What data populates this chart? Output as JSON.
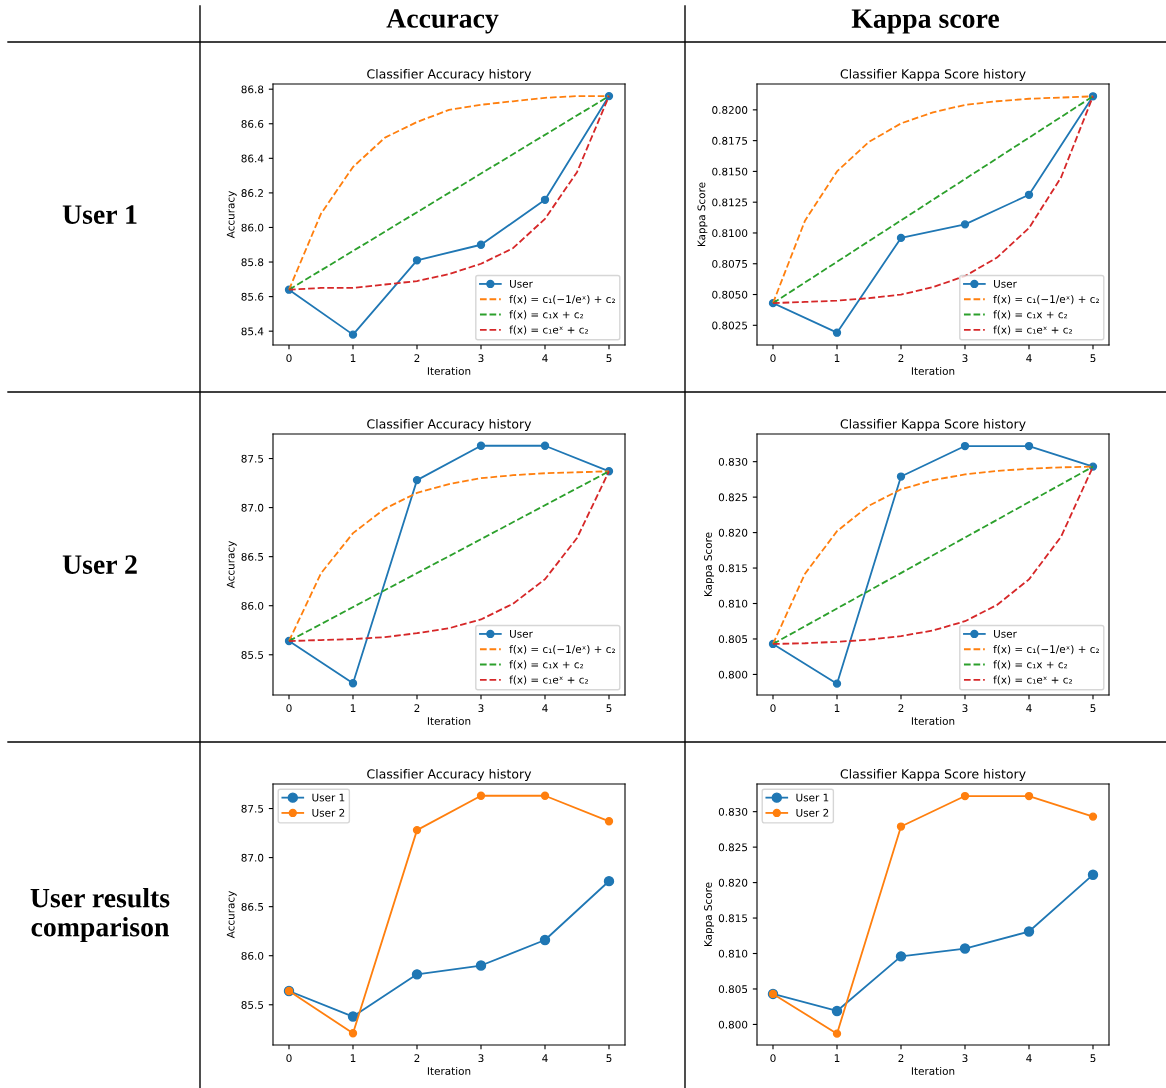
{
  "chart_data": [
    {
      "type": "other",
      "categories": [
        "Accuracy",
        "Kappa score"
      ],
      "y_categories": [
        "User 1",
        "User 2",
        "User results comparison"
      ]
    },
    {
      "type": "line",
      "title": "Classifier Accuracy history",
      "xlabel": "Iteration",
      "ylabel": "Accuracy",
      "xlim": [
        -0.25,
        5.25
      ],
      "xticks": [
        0,
        1,
        2,
        3,
        4,
        5
      ],
      "ylim": [
        85.32,
        86.83
      ],
      "yticks": [
        85.4,
        85.6,
        85.8,
        {
          "value": 86,
          "label": "86.0"
        },
        86.2,
        86.4,
        86.6,
        86.8
      ],
      "grid": false,
      "legend": "bottom right",
      "series": [
        {
          "name": "User",
          "color": "#1f77b4",
          "marker": "circle",
          "line_style": "solid",
          "x": [
            0,
            1,
            2,
            3,
            4,
            5
          ],
          "values": [
            85.64,
            85.38,
            85.81,
            85.9,
            86.16,
            86.76
          ]
        },
        {
          "name": "f(x) = c₁(−1/eˣ) + c₂",
          "color": "#ff7f0e",
          "marker": "none",
          "line_style": "dashed",
          "x": [
            0,
            0.5,
            1,
            1.5,
            2,
            2.5,
            3,
            3.5,
            4,
            4.5,
            5
          ],
          "values": [
            85.64,
            86.08,
            86.35,
            86.52,
            86.61,
            86.68,
            86.71,
            86.73,
            86.75,
            86.76,
            86.76
          ]
        },
        {
          "name": "f(x) = c₁x + c₂",
          "color": "#2ca02c",
          "marker": "none",
          "line_style": "dashed",
          "x": [
            0,
            5
          ],
          "values": [
            85.64,
            86.76
          ]
        },
        {
          "name": "f(x) = c₁eˣ + c₂",
          "color": "#d62728",
          "marker": "none",
          "line_style": "dashed",
          "x": [
            0,
            0.5,
            1,
            1.5,
            2,
            2.5,
            3,
            3.5,
            4,
            4.5,
            5
          ],
          "values": [
            85.64,
            85.65,
            85.65,
            85.67,
            85.69,
            85.73,
            85.79,
            85.88,
            86.05,
            86.32,
            86.76
          ]
        }
      ]
    },
    {
      "type": "line",
      "title": "Classifier Kappa Score history",
      "xlabel": "Iteration",
      "ylabel": "Kappa Score",
      "xlim": [
        -0.25,
        5.25
      ],
      "xticks": [
        0,
        1,
        2,
        3,
        4,
        5
      ],
      "ylim": [
        0.8009,
        0.8221
      ],
      "yticks": [
        {
          "value": 0.8025,
          "label": "0.8025"
        },
        {
          "value": 0.805,
          "label": "0.8050"
        },
        {
          "value": 0.8075,
          "label": "0.8075"
        },
        {
          "value": 0.81,
          "label": "0.8100"
        },
        {
          "value": 0.8125,
          "label": "0.8125"
        },
        {
          "value": 0.815,
          "label": "0.8150"
        },
        {
          "value": 0.8175,
          "label": "0.8175"
        },
        {
          "value": 0.82,
          "label": "0.8200"
        }
      ],
      "grid": false,
      "legend": "bottom right",
      "series": [
        {
          "name": "User",
          "color": "#1f77b4",
          "marker": "circle",
          "line_style": "solid",
          "x": [
            0,
            1,
            2,
            3,
            4,
            5
          ],
          "values": [
            0.8043,
            0.8019,
            0.8096,
            0.8107,
            0.8131,
            0.8211
          ]
        },
        {
          "name": "f(x) = c₁(−1/eˣ) + c₂",
          "color": "#ff7f0e",
          "marker": "none",
          "line_style": "dashed",
          "x": [
            0,
            0.5,
            1,
            1.5,
            2,
            2.5,
            3,
            3.5,
            4,
            4.5,
            5
          ],
          "values": [
            0.8043,
            0.811,
            0.815,
            0.8174,
            0.8189,
            0.8198,
            0.8204,
            0.8207,
            0.8209,
            0.821,
            0.8211
          ]
        },
        {
          "name": "f(x) = c₁x + c₂",
          "color": "#2ca02c",
          "marker": "none",
          "line_style": "dashed",
          "x": [
            0,
            5
          ],
          "values": [
            0.8043,
            0.8211
          ]
        },
        {
          "name": "f(x) = c₁eˣ + c₂",
          "color": "#d62728",
          "marker": "none",
          "line_style": "dashed",
          "x": [
            0,
            0.5,
            1,
            1.5,
            2,
            2.5,
            3,
            3.5,
            4,
            4.5,
            5
          ],
          "values": [
            0.8043,
            0.8044,
            0.8045,
            0.8047,
            0.805,
            0.8056,
            0.8065,
            0.808,
            0.8104,
            0.8145,
            0.8211
          ]
        }
      ]
    },
    {
      "type": "line",
      "title": "Classifier Accuracy history",
      "xlabel": "Iteration",
      "ylabel": "Accuracy",
      "xlim": [
        -0.25,
        5.25
      ],
      "xticks": [
        0,
        1,
        2,
        3,
        4,
        5
      ],
      "ylim": [
        85.09,
        87.75
      ],
      "yticks": [
        {
          "value": 85.5,
          "label": "85.5"
        },
        {
          "value": 86,
          "label": "86.0"
        },
        {
          "value": 86.5,
          "label": "86.5"
        },
        {
          "value": 87,
          "label": "87.0"
        },
        {
          "value": 87.5,
          "label": "87.5"
        }
      ],
      "grid": false,
      "legend": "bottom right",
      "series": [
        {
          "name": "User",
          "color": "#1f77b4",
          "marker": "circle",
          "line_style": "solid",
          "x": [
            0,
            1,
            2,
            3,
            4,
            5
          ],
          "values": [
            85.64,
            85.21,
            87.28,
            87.63,
            87.63,
            87.37
          ]
        },
        {
          "name": "f(x) = c₁(−1/eˣ) + c₂",
          "color": "#ff7f0e",
          "marker": "none",
          "line_style": "dashed",
          "x": [
            0,
            0.5,
            1,
            1.5,
            2,
            2.5,
            3,
            3.5,
            4,
            4.5,
            5
          ],
          "values": [
            85.64,
            86.33,
            86.74,
            86.99,
            87.15,
            87.24,
            87.3,
            87.33,
            87.35,
            87.36,
            87.37
          ]
        },
        {
          "name": "f(x) = c₁x + c₂",
          "color": "#2ca02c",
          "marker": "none",
          "line_style": "dashed",
          "x": [
            0,
            5
          ],
          "values": [
            85.64,
            87.37
          ]
        },
        {
          "name": "f(x) = c₁eˣ + c₂",
          "color": "#d62728",
          "marker": "none",
          "line_style": "dashed",
          "x": [
            0,
            0.5,
            1,
            1.5,
            2,
            2.5,
            3,
            3.5,
            4,
            4.5,
            5
          ],
          "values": [
            85.64,
            85.65,
            85.66,
            85.68,
            85.72,
            85.77,
            85.86,
            86.02,
            86.27,
            86.69,
            87.37
          ]
        }
      ]
    },
    {
      "type": "line",
      "title": "Classifier Kappa Score history",
      "xlabel": "Iteration",
      "ylabel": "Kappa Score",
      "xlim": [
        -0.25,
        5.25
      ],
      "xticks": [
        0,
        1,
        2,
        3,
        4,
        5
      ],
      "ylim": [
        0.7971,
        0.8339
      ],
      "yticks": [
        {
          "value": 0.8,
          "label": "0.800"
        },
        {
          "value": 0.805,
          "label": "0.805"
        },
        {
          "value": 0.81,
          "label": "0.810"
        },
        {
          "value": 0.815,
          "label": "0.815"
        },
        {
          "value": 0.82,
          "label": "0.820"
        },
        {
          "value": 0.825,
          "label": "0.825"
        },
        {
          "value": 0.83,
          "label": "0.830"
        }
      ],
      "grid": false,
      "legend": "bottom right",
      "series": [
        {
          "name": "User",
          "color": "#1f77b4",
          "marker": "circle",
          "line_style": "solid",
          "x": [
            0,
            1,
            2,
            3,
            4,
            5
          ],
          "values": [
            0.8043,
            0.7987,
            0.8279,
            0.8322,
            0.8322,
            0.8293
          ]
        },
        {
          "name": "f(x) = c₁(−1/eˣ) + c₂",
          "color": "#ff7f0e",
          "marker": "none",
          "line_style": "dashed",
          "x": [
            0,
            0.5,
            1,
            1.5,
            2,
            2.5,
            3,
            3.5,
            4,
            4.5,
            5
          ],
          "values": [
            0.8043,
            0.8142,
            0.8202,
            0.8238,
            0.8261,
            0.8274,
            0.8282,
            0.8287,
            0.829,
            0.8292,
            0.8293
          ]
        },
        {
          "name": "f(x) = c₁x + c₂",
          "color": "#2ca02c",
          "marker": "none",
          "line_style": "dashed",
          "x": [
            0,
            5
          ],
          "values": [
            0.8043,
            0.8293
          ]
        },
        {
          "name": "f(x) = c₁eˣ + c₂",
          "color": "#d62728",
          "marker": "none",
          "line_style": "dashed",
          "x": [
            0,
            0.5,
            1,
            1.5,
            2,
            2.5,
            3,
            3.5,
            4,
            4.5,
            5
          ],
          "values": [
            0.8043,
            0.8044,
            0.8046,
            0.8049,
            0.8054,
            0.8062,
            0.8075,
            0.8098,
            0.8134,
            0.8194,
            0.8293
          ]
        }
      ]
    },
    {
      "type": "line",
      "title": "Classifier Accuracy history",
      "xlabel": "Iteration",
      "ylabel": "Accuracy",
      "xlim": [
        -0.25,
        5.25
      ],
      "xticks": [
        0,
        1,
        2,
        3,
        4,
        5
      ],
      "ylim": [
        85.09,
        87.75
      ],
      "yticks": [
        {
          "value": 85.5,
          "label": "85.5"
        },
        {
          "value": 86,
          "label": "86.0"
        },
        {
          "value": 86.5,
          "label": "86.5"
        },
        {
          "value": 87,
          "label": "87.0"
        },
        {
          "value": 87.5,
          "label": "87.5"
        }
      ],
      "grid": false,
      "legend": "top left",
      "series": [
        {
          "name": "User 1",
          "color": "#1f77b4",
          "marker": "circle",
          "line_style": "solid",
          "x": [
            0,
            1,
            2,
            3,
            4,
            5
          ],
          "values": [
            85.64,
            85.38,
            85.81,
            85.9,
            86.16,
            86.76
          ]
        },
        {
          "name": "User 2",
          "color": "#ff7f0e",
          "marker": "circle",
          "line_style": "solid",
          "x": [
            0,
            1,
            2,
            3,
            4,
            5
          ],
          "values": [
            85.64,
            85.21,
            87.28,
            87.63,
            87.63,
            87.37
          ]
        }
      ]
    },
    {
      "type": "line",
      "title": "Classifier Kappa Score history",
      "xlabel": "Iteration",
      "ylabel": "Kappa Score",
      "xlim": [
        -0.25,
        5.25
      ],
      "xticks": [
        0,
        1,
        2,
        3,
        4,
        5
      ],
      "ylim": [
        0.7971,
        0.8339
      ],
      "yticks": [
        {
          "value": 0.8,
          "label": "0.800"
        },
        {
          "value": 0.805,
          "label": "0.805"
        },
        {
          "value": 0.81,
          "label": "0.810"
        },
        {
          "value": 0.815,
          "label": "0.815"
        },
        {
          "value": 0.82,
          "label": "0.820"
        },
        {
          "value": 0.825,
          "label": "0.825"
        },
        {
          "value": 0.83,
          "label": "0.830"
        }
      ],
      "grid": false,
      "legend": "top left",
      "series": [
        {
          "name": "User 1",
          "color": "#1f77b4",
          "marker": "circle",
          "line_style": "solid",
          "x": [
            0,
            1,
            2,
            3,
            4,
            5
          ],
          "values": [
            0.8043,
            0.8019,
            0.8096,
            0.8107,
            0.8131,
            0.8211
          ]
        },
        {
          "name": "User 2",
          "color": "#ff7f0e",
          "marker": "circle",
          "line_style": "solid",
          "x": [
            0,
            1,
            2,
            3,
            4,
            5
          ],
          "values": [
            0.8043,
            0.7987,
            0.8279,
            0.8322,
            0.8322,
            0.8293
          ]
        }
      ]
    }
  ]
}
